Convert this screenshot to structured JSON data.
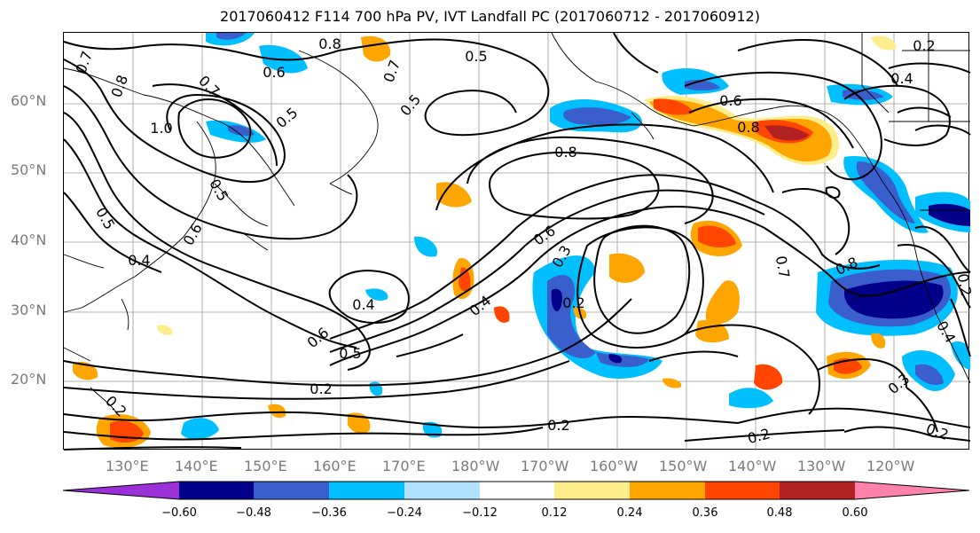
{
  "title": "2017060412 F114 700 hPa PV, IVT Landfall PC (2017060712 - 2017060912)",
  "lat_labels": [
    "60°N",
    "50°N",
    "40°N",
    "30°N",
    "20°N"
  ],
  "lon_labels": [
    "130°E",
    "140°E",
    "150°E",
    "160°E",
    "170°E",
    "180°W",
    "170°W",
    "160°W",
    "150°W",
    "140°W",
    "130°W",
    "120°W"
  ],
  "contour_labels": [
    "0.7",
    "0.8",
    "0.6",
    "0.8",
    "0.5",
    "0.7",
    "0.5",
    "0.7",
    "0.6",
    "0.8",
    "0.4",
    "0.2",
    "1.0",
    "0.5",
    "0.5",
    "0.8",
    "0.6",
    "0.4",
    "0.5",
    "0.4",
    "0.6",
    "0.5",
    "0.2",
    "0.6",
    "0.3",
    "0.2",
    "0.4",
    "0.7",
    "0.8",
    "0.2",
    "0.2",
    "0.2",
    "0.3",
    "0.2",
    "0.2",
    "0.4"
  ],
  "colorbar": {
    "ticks": [
      "−0.60",
      "−0.48",
      "−0.36",
      "−0.24",
      "−0.12",
      "0.12",
      "0.24",
      "0.36",
      "0.48",
      "0.60"
    ],
    "colors": [
      "#9b30d9",
      "#00008b",
      "#3a5fcd",
      "#00bfff",
      "#b0e2ff",
      "#ffffff",
      "#ffec8b",
      "#ffa500",
      "#ff4500",
      "#b22222",
      "#ff82ab"
    ]
  }
}
